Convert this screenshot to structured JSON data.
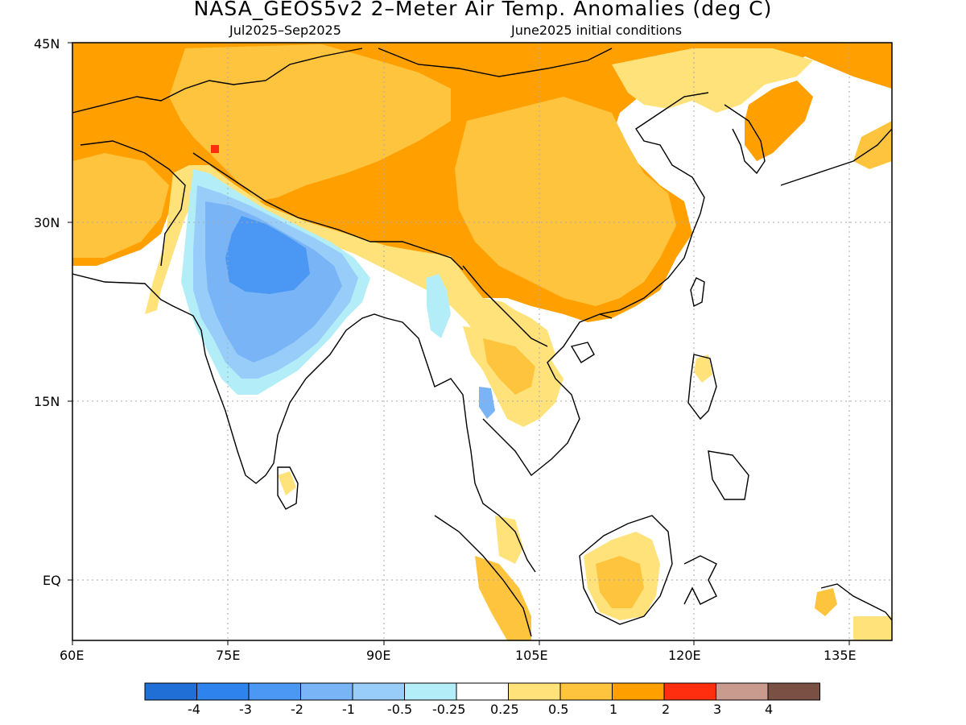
{
  "title": "NASA_GEOS5v2 2–Meter Air Temp. Anomalies (deg C)",
  "subtitle_left": "Jul2025–Sep2025",
  "subtitle_right": "June2025 initial conditions",
  "axes": {
    "x_ticks": [
      "60E",
      "75E",
      "90E",
      "105E",
      "120E",
      "135E"
    ],
    "y_ticks": [
      "45N",
      "30N",
      "15N",
      "EQ"
    ]
  },
  "colorbar": {
    "colors": [
      "#1f6fd6",
      "#2f83ec",
      "#4b98f4",
      "#79b4f7",
      "#98ccf9",
      "#b3eef8",
      "#ffffff",
      "#ffe27a",
      "#ffc43d",
      "#ffa000",
      "#ff2e0f",
      "#c99a8e",
      "#7a5045"
    ],
    "labels": [
      "-4",
      "-3",
      "-2",
      "-1",
      "-0.5",
      "-0.25",
      "0.25",
      "0.5",
      "1",
      "2",
      "3",
      "4"
    ]
  },
  "map_colors": {
    "orange": "#ffa000",
    "light_orange": "#ffc43d",
    "yellow": "#ffe27a",
    "mid_blue": "#4b98f4",
    "light_blue": "#79b4f7",
    "pale_blue": "#98ccf9",
    "cyan": "#b3eef8",
    "red": "#ff2e0f",
    "coast": "#000000",
    "grid": "#aaaaaa"
  }
}
